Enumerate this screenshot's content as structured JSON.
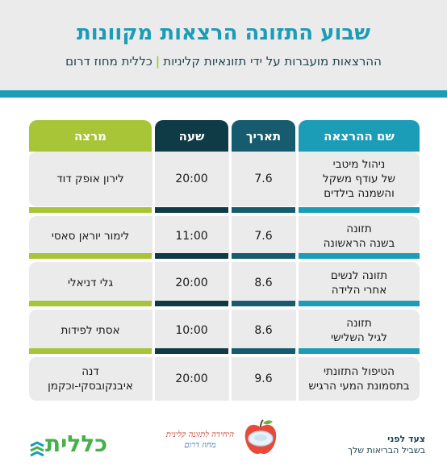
{
  "header": {
    "title": "שבוע התזונה הרצאות מקוונות",
    "subtitle_left": "ההרצאות מועברות על ידי תזונאיות קליניות",
    "subtitle_sep": "|",
    "subtitle_right": "כללית מחוז דרום"
  },
  "table": {
    "columns": {
      "name": "שם ההרצאה",
      "date": "תאריך",
      "time": "שעה",
      "lecturer": "מרצה"
    },
    "rows": [
      {
        "name": "ניהול מיטבי\nשל עודף משקל\nוהשמנה בילדים",
        "date": "7.6",
        "time": "20:00",
        "lecturer": "לירון אופק דוד"
      },
      {
        "name": "תזונה\nבשנה הראשונה",
        "date": "7.6",
        "time": "11:00",
        "lecturer": "לימור יוראן סאסי"
      },
      {
        "name": "תזונה לנשים\nאחרי הלידה",
        "date": "8.6",
        "time": "20:00",
        "lecturer": "גלי דניאלי"
      },
      {
        "name": "תזונה\nלגיל השלישי",
        "date": "8.6",
        "time": "10:00",
        "lecturer": "אסתי לפידות"
      },
      {
        "name": "הטיפול התזונתי\nבתסמונת המעי הרגיש",
        "date": "9.6",
        "time": "20:00",
        "lecturer": "דנה\nאיבנקובסקי-וכקמן"
      }
    ]
  },
  "footer": {
    "clalit_logo_text": "כללית",
    "unit_line1": "היחידה לתזונה קלינית",
    "unit_line2": "מחוז דרום",
    "slogan_line1": "צעד לפני",
    "slogan_line2": "בשביל הבריאות שלך"
  },
  "colors": {
    "teal": "#1b9cb7",
    "dark_teal": "#165c6e",
    "navy": "#0f3b46",
    "lime": "#a8c538",
    "row_bg": "#ebebec"
  }
}
